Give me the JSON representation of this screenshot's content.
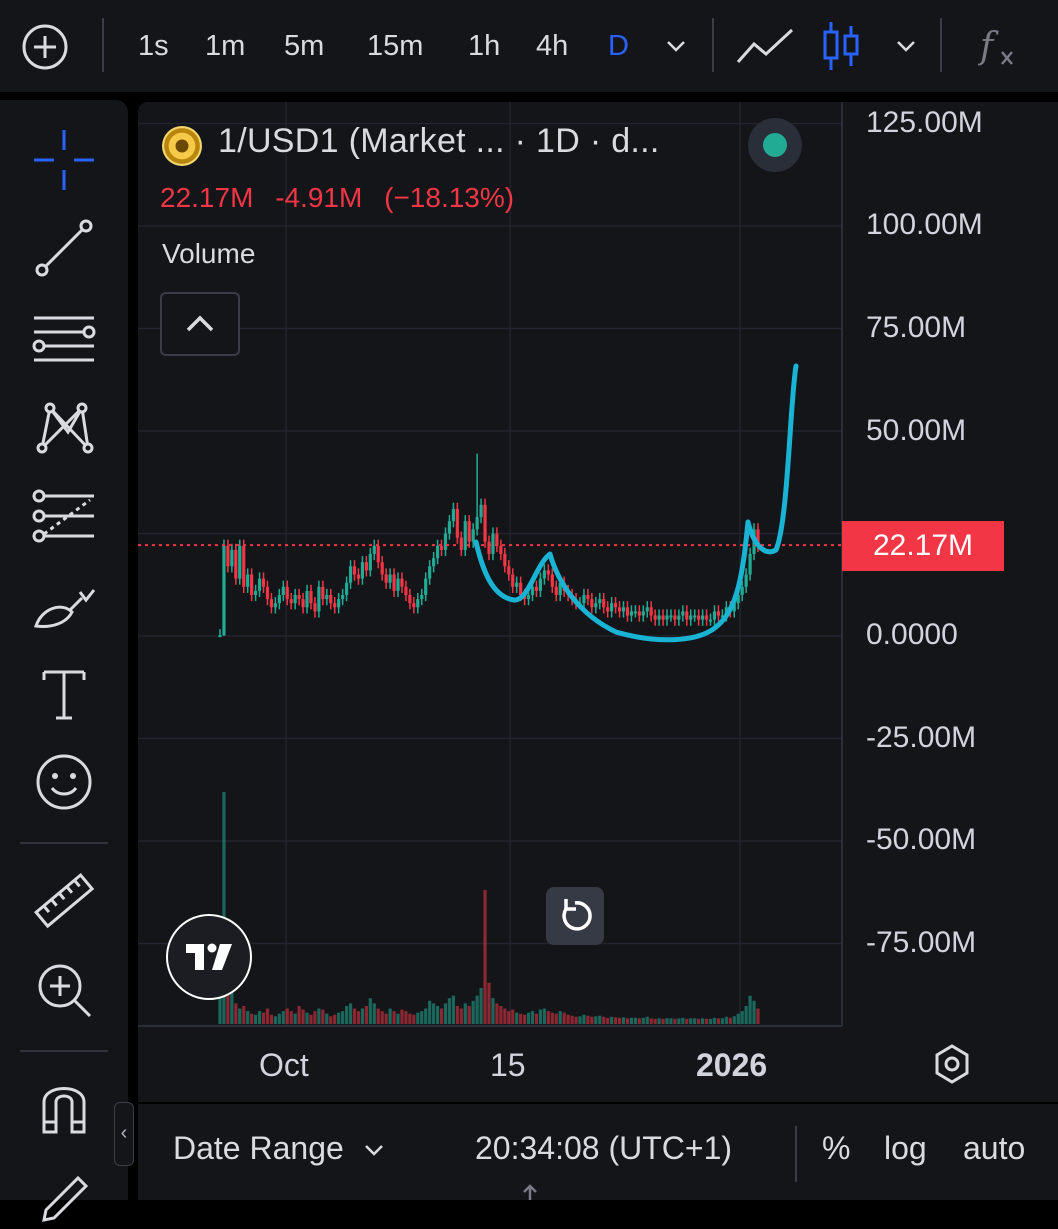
{
  "toolbar": {
    "timeframes": [
      "1s",
      "1m",
      "5m",
      "15m",
      "1h",
      "4h",
      "D"
    ],
    "active_timeframe": "D",
    "icons": [
      "add-symbol-icon",
      "chevron-down-icon",
      "line-chart-icon",
      "candles-icon",
      "indicators-fx-icon"
    ]
  },
  "left_tools": [
    "crosshair-icon",
    "trend-line-icon",
    "horizontal-lines-icon",
    "pattern-icon",
    "fib-icon",
    "brush-icon",
    "text-icon",
    "emoji-icon",
    "ruler-icon",
    "zoom-in-icon",
    "magnet-icon",
    "pencil-icon"
  ],
  "legend": {
    "title": "1/USD1 (Market ... · 1D · d...",
    "last": "22.17M",
    "change": "-4.91M",
    "change_pct": "(−18.13%)",
    "volume_label": "Volume"
  },
  "price_axis": [
    "125.00M",
    "100.00M",
    "75.00M",
    "50.00M",
    "0.0000",
    "-25.00M",
    "-50.00M",
    "-75.00M"
  ],
  "last_price_label": "22.17M",
  "time_axis": {
    "oct": "Oct",
    "mid": "15",
    "year": "2026"
  },
  "bottom_bar": {
    "date_range": "Date Range",
    "clock": "20:34:08 (UTC+1)",
    "percent": "%",
    "log": "log",
    "auto": "auto"
  },
  "colors": {
    "up": "#22ab94",
    "down": "#f23645",
    "accent": "#2962ff",
    "drawing": "#19b4d4"
  },
  "chart_data": {
    "type": "candlestick",
    "title": "1/USD1 (Market ... · 1D · d...",
    "ylim": [
      -85000000,
      130000000
    ],
    "last_value": 22170000,
    "ohlc_close_approx": [
      0.2,
      22,
      17,
      21,
      14,
      22,
      12,
      15,
      10,
      11,
      14,
      12,
      9,
      7,
      8,
      10,
      12,
      9,
      8,
      10,
      9,
      7,
      11,
      8,
      6,
      12,
      9,
      10,
      8,
      7,
      9,
      10,
      13,
      17,
      15,
      14,
      18,
      16,
      20,
      22,
      18,
      15,
      13,
      15,
      11,
      14,
      12,
      10,
      8,
      7,
      9,
      10,
      14,
      17,
      19,
      22,
      21,
      25,
      28,
      31,
      24,
      21,
      28,
      23,
      26,
      29,
      32,
      23,
      20,
      25,
      22,
      20,
      17,
      15,
      12,
      13,
      10,
      9,
      10,
      12,
      11,
      14,
      16,
      15,
      12,
      10,
      13,
      11,
      10,
      9,
      8,
      8,
      10,
      9,
      7,
      8,
      9,
      7,
      6,
      8,
      7,
      6,
      7,
      5,
      6,
      6,
      5,
      6,
      7,
      5,
      4,
      5,
      4,
      5,
      5,
      4,
      5,
      6,
      4,
      5,
      5,
      4,
      5,
      4,
      4,
      6,
      5,
      5,
      7,
      6,
      8,
      10,
      12,
      15,
      20,
      26,
      22
    ],
    "volume_approx": [
      80,
      450,
      120,
      60,
      40,
      30,
      35,
      25,
      20,
      18,
      25,
      22,
      30,
      18,
      15,
      20,
      25,
      30,
      25,
      20,
      35,
      28,
      22,
      18,
      25,
      30,
      28,
      20,
      15,
      18,
      22,
      25,
      35,
      40,
      30,
      25,
      30,
      35,
      50,
      40,
      30,
      25,
      20,
      30,
      25,
      20,
      28,
      25,
      20,
      18,
      22,
      25,
      30,
      45,
      40,
      35,
      30,
      40,
      50,
      55,
      35,
      30,
      40,
      35,
      45,
      55,
      70,
      260,
      80,
      50,
      40,
      35,
      30,
      25,
      28,
      22,
      20,
      18,
      22,
      25,
      20,
      28,
      30,
      25,
      22,
      20,
      25,
      22,
      18,
      16,
      14,
      15,
      18,
      16,
      14,
      15,
      16,
      14,
      12,
      14,
      13,
      12,
      13,
      11,
      12,
      12,
      11,
      12,
      14,
      11,
      10,
      11,
      10,
      11,
      11,
      10,
      11,
      12,
      10,
      11,
      11,
      10,
      11,
      10,
      10,
      12,
      11,
      11,
      14,
      12,
      15,
      20,
      25,
      35,
      55,
      45,
      30
    ]
  }
}
